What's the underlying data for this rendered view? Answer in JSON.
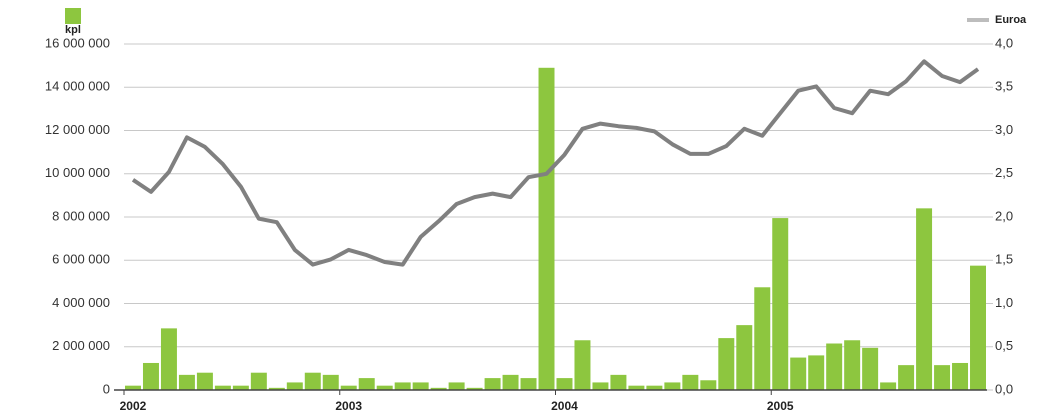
{
  "chart_data": {
    "type": "bar_line",
    "categories": [
      "2002",
      null,
      null,
      null,
      null,
      null,
      null,
      null,
      null,
      null,
      null,
      null,
      "2003",
      null,
      null,
      null,
      null,
      null,
      null,
      null,
      null,
      null,
      null,
      null,
      "2004",
      null,
      null,
      null,
      null,
      null,
      null,
      null,
      null,
      null,
      null,
      null,
      "2005",
      null,
      null,
      null,
      null,
      null,
      null,
      null,
      null,
      null,
      null,
      null
    ],
    "series": [
      {
        "name": "kpl",
        "color": "#8dc63f",
        "type": "bar",
        "values": [
          200000,
          1250000,
          2850000,
          700000,
          800000,
          200000,
          200000,
          800000,
          100000,
          350000,
          800000,
          700000,
          200000,
          550000,
          200000,
          350000,
          350000,
          100000,
          350000,
          100000,
          550000,
          700000,
          550000,
          14900000,
          550000,
          2300000,
          350000,
          700000,
          200000,
          200000,
          350000,
          700000,
          450000,
          2400000,
          3000000,
          4750000,
          7950000,
          1500000,
          1600000,
          2150000,
          2300000,
          1950000,
          350000,
          1150000,
          8400000,
          1150000,
          1250000,
          5750000
        ]
      },
      {
        "name": "Euroa",
        "color": "#808080",
        "type": "line",
        "axis": "y2",
        "values": [
          2.43,
          2.29,
          2.52,
          2.92,
          2.81,
          2.61,
          2.35,
          1.98,
          1.94,
          1.62,
          1.45,
          1.51,
          1.62,
          1.56,
          1.48,
          1.45,
          1.77,
          1.95,
          2.15,
          2.23,
          2.27,
          2.23,
          2.46,
          2.5,
          2.72,
          3.02,
          3.08,
          3.05,
          3.03,
          2.99,
          2.84,
          2.73,
          2.73,
          2.82,
          3.02,
          2.94,
          3.2,
          3.46,
          3.51,
          3.26,
          3.2,
          3.46,
          3.42,
          3.57,
          3.8,
          3.63,
          3.56,
          3.71
        ]
      }
    ],
    "ylim": [
      0,
      16000000
    ],
    "yticks": [
      0,
      {
        "value": 2000000,
        "label": "2 000 000"
      },
      {
        "value": 4000000,
        "label": "4 000 000"
      },
      {
        "value": 6000000,
        "label": "6 000 000"
      },
      {
        "value": 8000000,
        "label": "8 000 000"
      },
      {
        "value": 10000000,
        "label": "10 000 000"
      },
      {
        "value": 12000000,
        "label": "12 000 000"
      },
      {
        "value": 14000000,
        "label": "14 000 000"
      },
      {
        "value": 16000000,
        "label": "16 000 000"
      }
    ],
    "y2lim": [
      0,
      4
    ],
    "y2ticks": [
      {
        "value": 0,
        "label": "0,0"
      },
      {
        "value": 0.5,
        "label": "0,5"
      },
      {
        "value": 1,
        "label": "1,0"
      },
      {
        "value": 1.5,
        "label": "1,5"
      },
      {
        "value": 2,
        "label": "2,0"
      },
      {
        "value": 2.5,
        "label": "2,5"
      },
      {
        "value": 3,
        "label": "3,0"
      },
      {
        "value": 3.5,
        "label": "3,5"
      },
      {
        "value": 4,
        "label": "4,0"
      }
    ],
    "grid": true
  }
}
